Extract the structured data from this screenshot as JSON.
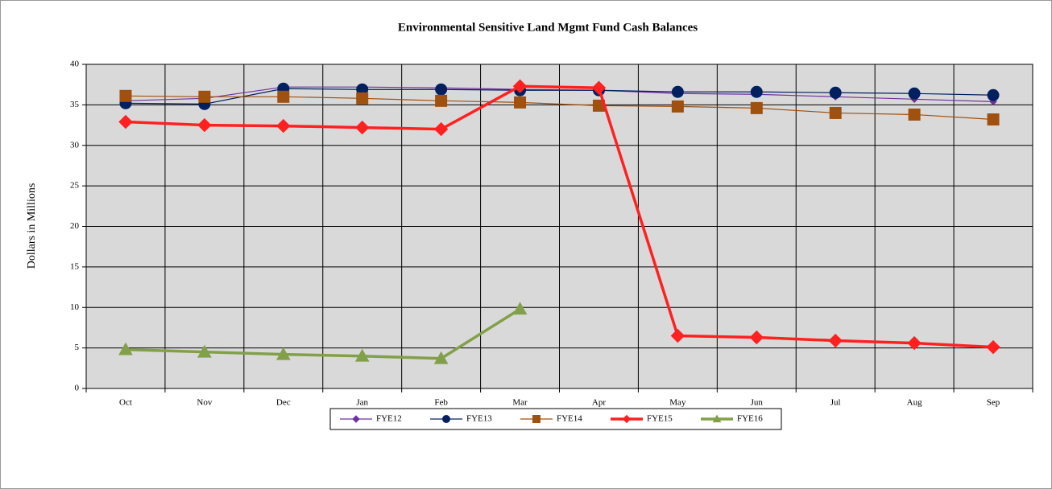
{
  "chart_data": {
    "type": "line",
    "title": "Environmental Sensitive Land Mgmt Fund Cash Balances",
    "y_label": "Dollars in Millions",
    "categories": [
      "Oct",
      "Nov",
      "Dec",
      "Jan",
      "Feb",
      "Mar",
      "Apr",
      "May",
      "Jun",
      "Jul",
      "Aug",
      "Sep"
    ],
    "series": [
      {
        "name": "FYE12",
        "color": "#7030a0",
        "marker": "diamond",
        "values": [
          35.5,
          35.8,
          37.2,
          37.2,
          37.1,
          36.9,
          36.8,
          36.4,
          36.3,
          36.0,
          35.7,
          35.4
        ]
      },
      {
        "name": "FYE13",
        "color": "#002060",
        "marker": "circle",
        "values": [
          35.2,
          35.1,
          37.0,
          36.9,
          36.9,
          36.8,
          36.8,
          36.6,
          36.6,
          36.5,
          36.4,
          36.2
        ]
      },
      {
        "name": "FYE14",
        "color": "#a0500f",
        "marker": "square",
        "values": [
          36.1,
          36.0,
          36.0,
          35.8,
          35.5,
          35.3,
          34.9,
          34.8,
          34.6,
          34.0,
          33.8,
          33.2
        ]
      },
      {
        "name": "FYE15",
        "color": "#ff2020",
        "marker": "diamond",
        "values": [
          32.9,
          32.5,
          32.4,
          32.2,
          32.0,
          37.3,
          37.1,
          6.5,
          6.3,
          5.9,
          5.6,
          5.1
        ]
      },
      {
        "name": "FYE16",
        "color": "#82a04a",
        "marker": "triangle",
        "values": [
          4.8,
          4.5,
          4.2,
          4.0,
          3.7,
          9.8,
          null,
          null,
          null,
          null,
          null,
          null
        ]
      }
    ],
    "ylim": [
      0,
      40
    ],
    "yticks": [
      0,
      5,
      10,
      15,
      20,
      25,
      30,
      35,
      40
    ],
    "grid": true,
    "legend": "bottom"
  }
}
